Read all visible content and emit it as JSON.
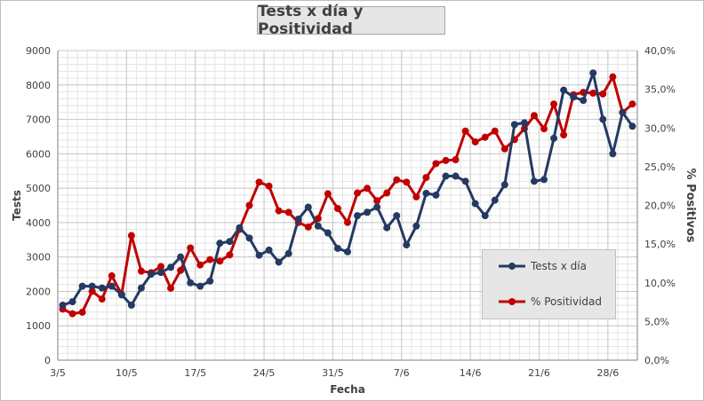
{
  "chart_data": {
    "type": "line",
    "title": "Tests x día y Positividad",
    "xlabel": "Fecha",
    "ylabel": "Tests",
    "y2label": "% Positivos",
    "ylim": [
      0,
      9000
    ],
    "y2lim": [
      0,
      40
    ],
    "yticks": [
      "0",
      "1000",
      "2000",
      "3000",
      "4000",
      "5000",
      "6000",
      "7000",
      "8000",
      "9000"
    ],
    "y2ticks": [
      "0,0%",
      "5,0%",
      "10,0%",
      "15,0%",
      "20,0%",
      "25,0%",
      "30,0%",
      "35,0%",
      "40,0%"
    ],
    "x_tick_labels": [
      {
        "index": 0,
        "label": "3/5"
      },
      {
        "index": 7,
        "label": "10/5"
      },
      {
        "index": 14,
        "label": "17/5"
      },
      {
        "index": 21,
        "label": "24/5"
      },
      {
        "index": 28,
        "label": "31/5"
      },
      {
        "index": 35,
        "label": "7/6"
      },
      {
        "index": 42,
        "label": "14/6"
      },
      {
        "index": 49,
        "label": "21/6"
      },
      {
        "index": 56,
        "label": "28/6"
      }
    ],
    "grid": true,
    "legend_position": "bottom-right",
    "series": [
      {
        "name": "Tests x día",
        "axis": "left",
        "color": "#243a63",
        "values": [
          1600,
          1700,
          2150,
          2150,
          2100,
          2150,
          1900,
          1600,
          2100,
          2500,
          2550,
          2700,
          3000,
          2250,
          2150,
          2300,
          3400,
          3450,
          3850,
          3550,
          3050,
          3200,
          2850,
          3100,
          4100,
          4450,
          3900,
          3700,
          3250,
          3150,
          4200,
          4300,
          4450,
          3850,
          4200,
          3350,
          3900,
          4850,
          4800,
          5350,
          5350,
          5200,
          4550,
          4200,
          4650,
          5100,
          6850,
          6900,
          5200,
          5250,
          6450,
          7850,
          7650,
          7550,
          8350,
          7000,
          6000,
          7200,
          6800
        ]
      },
      {
        "name": "% Positividad",
        "axis": "right",
        "color": "#c00000",
        "values": [
          6.6,
          6.0,
          6.2,
          8.9,
          7.9,
          10.9,
          8.5,
          16.1,
          11.5,
          11.3,
          12.1,
          9.3,
          11.6,
          14.5,
          12.3,
          13.0,
          12.8,
          13.6,
          16.9,
          20.0,
          23.0,
          22.5,
          19.3,
          19.1,
          17.8,
          17.2,
          18.3,
          21.5,
          19.6,
          17.8,
          21.6,
          22.2,
          20.6,
          21.6,
          23.3,
          23.0,
          21.1,
          23.6,
          25.4,
          25.8,
          25.9,
          29.6,
          28.2,
          28.8,
          29.6,
          27.3,
          28.5,
          29.9,
          31.6,
          29.9,
          33.1,
          29.1,
          34.3,
          34.6,
          34.5,
          34.4,
          36.6,
          32.0,
          33.1
        ]
      }
    ]
  },
  "legend": {
    "items": [
      "Tests x día",
      "% Positividad"
    ]
  }
}
